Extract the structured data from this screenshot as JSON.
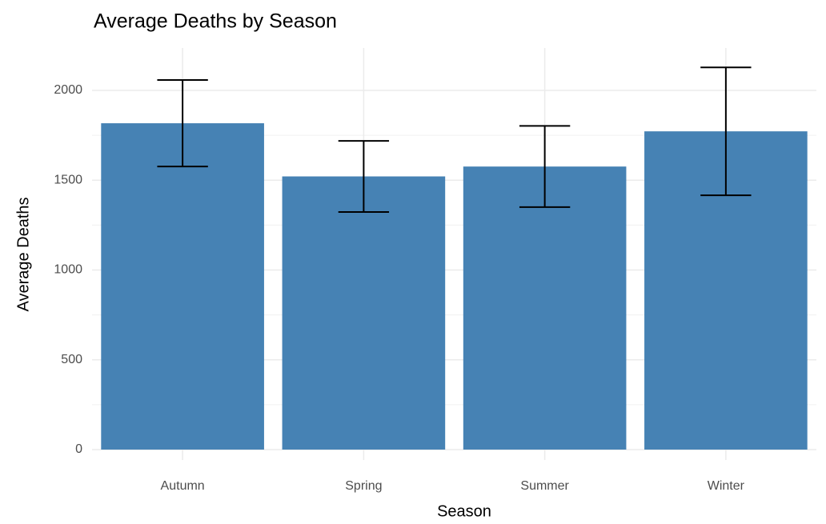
{
  "chart_data": {
    "type": "bar",
    "title": "Average Deaths by Season",
    "x_label": "Season",
    "y_label": "Average Deaths",
    "categories": [
      "Autumn",
      "Spring",
      "Summer",
      "Winter"
    ],
    "values": [
      1817,
      1521,
      1576,
      1772
    ],
    "errors": [
      241,
      198,
      226,
      356
    ],
    "color": "#4682b4",
    "ylim": [
      -58,
      2236
    ],
    "yticks": [
      0,
      500,
      1000,
      1500,
      2000
    ],
    "minor_yticks": [
      250,
      750,
      1250,
      1750
    ],
    "grid": true
  }
}
